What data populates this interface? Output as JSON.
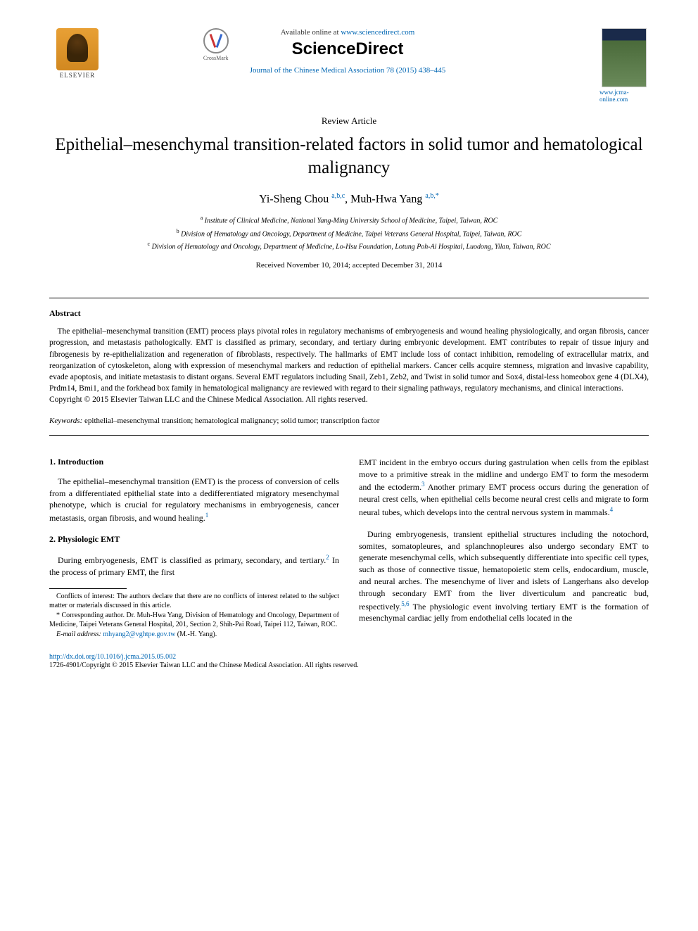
{
  "header": {
    "elsevier_label": "ELSEVIER",
    "crossmark_label": "CrossMark",
    "available_text": "Available online at ",
    "sciencedirect_url": "www.sciencedirect.com",
    "sciencedirect_logo": "ScienceDirect",
    "journal_ref": "Journal of the Chinese Medical Association 78 (2015) 438–445",
    "jcma_url": "www.jcma-online.com"
  },
  "article": {
    "type": "Review Article",
    "title": "Epithelial–mesenchymal transition-related factors in solid tumor and hematological malignancy",
    "authors_html": "Yi-Sheng Chou <sup>a,b,c</sup>, Muh-Hwa Yang <sup>a,b,*</sup>",
    "author1": "Yi-Sheng Chou",
    "author1_aff": "a,b,c",
    "author2": "Muh-Hwa Yang",
    "author2_aff": "a,b,",
    "affiliations": {
      "a": "Institute of Clinical Medicine, National Yang-Ming University School of Medicine, Taipei, Taiwan, ROC",
      "b": "Division of Hematology and Oncology, Department of Medicine, Taipei Veterans General Hospital, Taipei, Taiwan, ROC",
      "c": "Division of Hematology and Oncology, Department of Medicine, Lo-Hsu Foundation, Lotung Poh-Ai Hospital, Luodong, Yilan, Taiwan, ROC"
    },
    "dates": "Received November 10, 2014; accepted December 31, 2014"
  },
  "abstract": {
    "heading": "Abstract",
    "body": "The epithelial–mesenchymal transition (EMT) process plays pivotal roles in regulatory mechanisms of embryogenesis and wound healing physiologically, and organ fibrosis, cancer progression, and metastasis pathologically. EMT is classified as primary, secondary, and tertiary during embryonic development. EMT contributes to repair of tissue injury and fibrogenesis by re-epithelialization and regeneration of fibroblasts, respectively. The hallmarks of EMT include loss of contact inhibition, remodeling of extracellular matrix, and reorganization of cytoskeleton, along with expression of mesenchymal markers and reduction of epithelial markers. Cancer cells acquire stemness, migration and invasive capability, evade apoptosis, and initiate metastasis to distant organs. Several EMT regulators including Snail, Zeb1, Zeb2, and Twist in solid tumor and Sox4, distal-less homeobox gene 4 (DLX4), Prdm14, Bmi1, and the forkhead box family in hematological malignancy are reviewed with regard to their signaling pathways, regulatory mechanisms, and clinical interactions.",
    "copyright": "Copyright © 2015 Elsevier Taiwan LLC and the Chinese Medical Association. All rights reserved."
  },
  "keywords": {
    "label": "Keywords:",
    "text": " epithelial–mesenchymal transition; hematological malignancy; solid tumor; transcription factor"
  },
  "sections": {
    "s1_heading": "1. Introduction",
    "s1_p1": "The epithelial–mesenchymal transition (EMT) is the process of conversion of cells from a differentiated epithelial state into a dedifferentiated migratory mesenchymal phenotype, which is crucial for regulatory mechanisms in embryogenesis, cancer metastasis, organ fibrosis, and wound healing.",
    "s2_heading": "2. Physiologic EMT",
    "s2_p1_left": "During embryogenesis, EMT is classified as primary, secondary, and tertiary.",
    "s2_p1_left_cont": " In the process of primary EMT, the first",
    "s2_p1_right": "EMT incident in the embryo occurs during gastrulation when cells from the epiblast move to a primitive streak in the midline and undergo EMT to form the mesoderm and the ectoderm.",
    "s2_p1_right_cont": " Another primary EMT process occurs during the generation of neural crest cells, when epithelial cells become neural crest cells and migrate to form neural tubes, which develops into the central nervous system in mammals.",
    "s2_p2_right": "During embryogenesis, transient epithelial structures including the notochord, somites, somatopleures, and splanchnopleures also undergo secondary EMT to generate mesenchymal cells, which subsequently differentiate into specific cell types, such as those of connective tissue, hematopoietic stem cells, endocardium, muscle, and neural arches. The mesenchyme of liver and islets of Langerhans also develop through secondary EMT from the liver diverticulum and pancreatic bud, respectively.",
    "s2_p2_right_cont": " The physiologic event involving tertiary EMT is the formation of mesenchymal cardiac jelly from endothelial cells located in the"
  },
  "footnotes": {
    "conflicts": "Conflicts of interest: The authors declare that there are no conflicts of interest related to the subject matter or materials discussed in this article.",
    "corresponding": "* Corresponding author. Dr. Muh-Hwa Yang, Division of Hematology and Oncology, Department of Medicine, Taipei Veterans General Hospital, 201, Section 2, Shih-Pai Road, Taipei 112, Taiwan, ROC.",
    "email_label": "E-mail address:",
    "email": " mhyang2@vghtpe.gov.tw",
    "email_suffix": " (M.-H. Yang)."
  },
  "footer": {
    "doi": "http://dx.doi.org/10.1016/j.jcma.2015.05.002",
    "bottom_copyright": "1726-4901/Copyright © 2015 Elsevier Taiwan LLC and the Chinese Medical Association. All rights reserved."
  },
  "refs": {
    "r1": "1",
    "r2": "2",
    "r3": "3",
    "r4": "4",
    "r56": "5,6"
  },
  "colors": {
    "link": "#0066b3",
    "text": "#000000",
    "bg": "#ffffff"
  }
}
